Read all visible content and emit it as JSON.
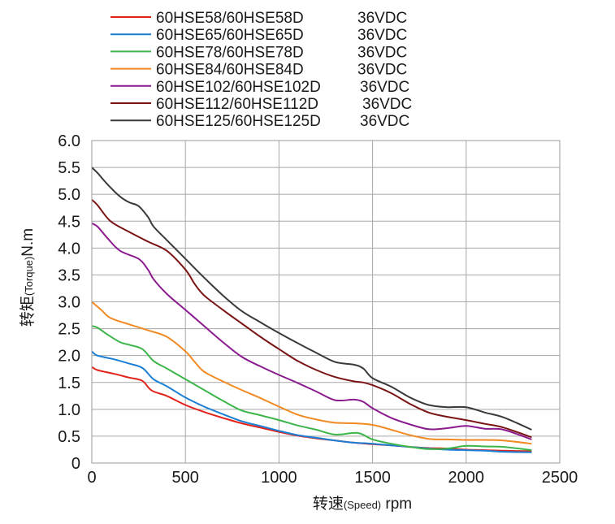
{
  "chart_data": {
    "type": "line",
    "title": "",
    "xlabel": {
      "main": "转速",
      "paren": "(Speed)",
      "unit": " rpm"
    },
    "ylabel": {
      "main": "转矩",
      "paren": "(Torque)",
      "unit": "N.m"
    },
    "xlim": [
      0,
      2500
    ],
    "ylim": [
      0,
      6.0
    ],
    "xticks": [
      "0",
      "500",
      "1000",
      "1500",
      "2000",
      "2500"
    ],
    "yticks": [
      "0",
      "0.5",
      "1.0",
      "1.5",
      "2.0",
      "2.5",
      "3.0",
      "3.5",
      "4.0",
      "4.5",
      "5.0",
      "5.5",
      "6.0"
    ],
    "grid": true,
    "legend_position": "top-left, above plot",
    "series": [
      {
        "name": "60HSE58/60HSE58D",
        "voltage": "36VDC",
        "color": "#e2231a",
        "x": [
          0,
          30,
          120,
          200,
          270,
          320,
          400,
          500,
          600,
          700,
          800,
          900,
          1000,
          1100,
          1200,
          1300,
          1400,
          1500,
          1600,
          1700,
          1800,
          1900,
          2000,
          2100,
          2200,
          2350
        ],
        "y": [
          1.79,
          1.73,
          1.66,
          1.59,
          1.53,
          1.35,
          1.25,
          1.08,
          0.95,
          0.84,
          0.74,
          0.66,
          0.58,
          0.51,
          0.46,
          0.42,
          0.38,
          0.35,
          0.33,
          0.3,
          0.28,
          0.27,
          0.25,
          0.24,
          0.23,
          0.22
        ]
      },
      {
        "name": "60HSE65/60HSE65D",
        "voltage": "36VDC",
        "color": "#1a7fd4",
        "x": [
          0,
          30,
          120,
          200,
          270,
          330,
          400,
          500,
          600,
          700,
          800,
          900,
          1000,
          1100,
          1200,
          1300,
          1400,
          1500,
          1600,
          1700,
          1800,
          1900,
          2000,
          2100,
          2200,
          2350
        ],
        "y": [
          2.08,
          2.0,
          1.93,
          1.85,
          1.77,
          1.56,
          1.43,
          1.22,
          1.05,
          0.91,
          0.78,
          0.69,
          0.6,
          0.52,
          0.47,
          0.42,
          0.38,
          0.36,
          0.33,
          0.3,
          0.27,
          0.25,
          0.24,
          0.23,
          0.21,
          0.2
        ]
      },
      {
        "name": "60HSE78/60HSE78D",
        "voltage": "36VDC",
        "color": "#3db54a",
        "x": [
          0,
          30,
          80,
          150,
          200,
          270,
          330,
          400,
          500,
          600,
          700,
          800,
          900,
          1000,
          1100,
          1200,
          1300,
          1420,
          1500,
          1600,
          1700,
          1800,
          1900,
          2000,
          2100,
          2200,
          2350
        ],
        "y": [
          2.55,
          2.52,
          2.4,
          2.25,
          2.2,
          2.12,
          1.9,
          1.76,
          1.56,
          1.36,
          1.16,
          0.98,
          0.89,
          0.8,
          0.7,
          0.62,
          0.53,
          0.56,
          0.44,
          0.36,
          0.3,
          0.26,
          0.27,
          0.32,
          0.31,
          0.3,
          0.24
        ]
      },
      {
        "name": "60HSE84/60HSE84D",
        "voltage": "36VDC",
        "color": "#f28a23",
        "x": [
          0,
          50,
          100,
          200,
          300,
          400,
          500,
          550,
          600,
          700,
          800,
          900,
          1000,
          1100,
          1200,
          1300,
          1400,
          1500,
          1600,
          1700,
          1800,
          1900,
          2000,
          2100,
          2200,
          2350
        ],
        "y": [
          3.0,
          2.85,
          2.7,
          2.58,
          2.47,
          2.35,
          2.08,
          1.88,
          1.7,
          1.52,
          1.36,
          1.21,
          1.05,
          0.9,
          0.81,
          0.75,
          0.74,
          0.71,
          0.62,
          0.52,
          0.45,
          0.44,
          0.43,
          0.43,
          0.42,
          0.36
        ]
      },
      {
        "name": "60HSE102/60HSE102D",
        "voltage": "36VDC",
        "color": "#8b1a8f",
        "x": [
          0,
          30,
          80,
          150,
          250,
          300,
          330,
          400,
          500,
          600,
          700,
          800,
          900,
          1000,
          1100,
          1200,
          1300,
          1400,
          1450,
          1500,
          1600,
          1700,
          1800,
          1900,
          2000,
          2100,
          2200,
          2350
        ],
        "y": [
          4.46,
          4.4,
          4.2,
          3.95,
          3.8,
          3.6,
          3.42,
          3.15,
          2.85,
          2.55,
          2.25,
          1.98,
          1.8,
          1.64,
          1.49,
          1.33,
          1.17,
          1.18,
          1.14,
          1.02,
          0.84,
          0.72,
          0.63,
          0.65,
          0.69,
          0.64,
          0.62,
          0.44
        ]
      },
      {
        "name": "60HSE112/60HSE112D",
        "voltage": "36VDC",
        "color": "#7a1414",
        "x": [
          0,
          30,
          100,
          200,
          300,
          400,
          500,
          550,
          600,
          700,
          800,
          900,
          1000,
          1100,
          1200,
          1300,
          1400,
          1450,
          1500,
          1600,
          1700,
          1800,
          1900,
          2000,
          2100,
          2200,
          2350
        ],
        "y": [
          4.9,
          4.8,
          4.5,
          4.3,
          4.12,
          3.95,
          3.6,
          3.33,
          3.12,
          2.85,
          2.6,
          2.35,
          2.12,
          1.9,
          1.73,
          1.6,
          1.52,
          1.5,
          1.45,
          1.3,
          1.1,
          0.94,
          0.86,
          0.8,
          0.73,
          0.66,
          0.48
        ]
      },
      {
        "name": "60HSE125/60HSE125D",
        "voltage": "36VDC",
        "color": "#3a3a3a",
        "x": [
          0,
          30,
          80,
          150,
          200,
          250,
          300,
          330,
          400,
          500,
          600,
          700,
          800,
          900,
          1000,
          1100,
          1200,
          1300,
          1400,
          1450,
          1500,
          1600,
          1700,
          1800,
          1900,
          2000,
          2100,
          2200,
          2350
        ],
        "y": [
          5.5,
          5.4,
          5.2,
          4.96,
          4.85,
          4.78,
          4.58,
          4.4,
          4.15,
          3.8,
          3.45,
          3.12,
          2.83,
          2.62,
          2.42,
          2.23,
          2.05,
          1.88,
          1.83,
          1.76,
          1.58,
          1.42,
          1.22,
          1.08,
          1.04,
          1.04,
          0.94,
          0.85,
          0.62
        ]
      }
    ]
  }
}
